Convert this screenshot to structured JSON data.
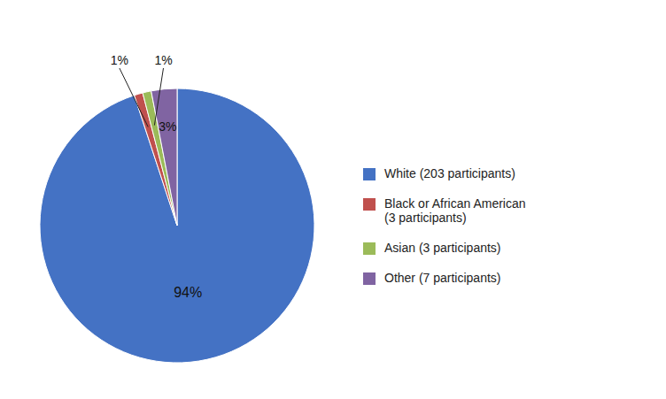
{
  "chart_data": {
    "type": "pie",
    "categories": [
      "White (203 participants)",
      "Black or African American\n(3 participants)",
      "Asian (3 participants)",
      "Other (7 participants)"
    ],
    "values": [
      94,
      1,
      1,
      3
    ],
    "value_labels": [
      "94%",
      "1%",
      "1%",
      "3%"
    ],
    "colors": [
      "#4472C4",
      "#C0504D",
      "#9BBB59",
      "#8064A2"
    ],
    "data_labels": true,
    "legend": "right"
  }
}
